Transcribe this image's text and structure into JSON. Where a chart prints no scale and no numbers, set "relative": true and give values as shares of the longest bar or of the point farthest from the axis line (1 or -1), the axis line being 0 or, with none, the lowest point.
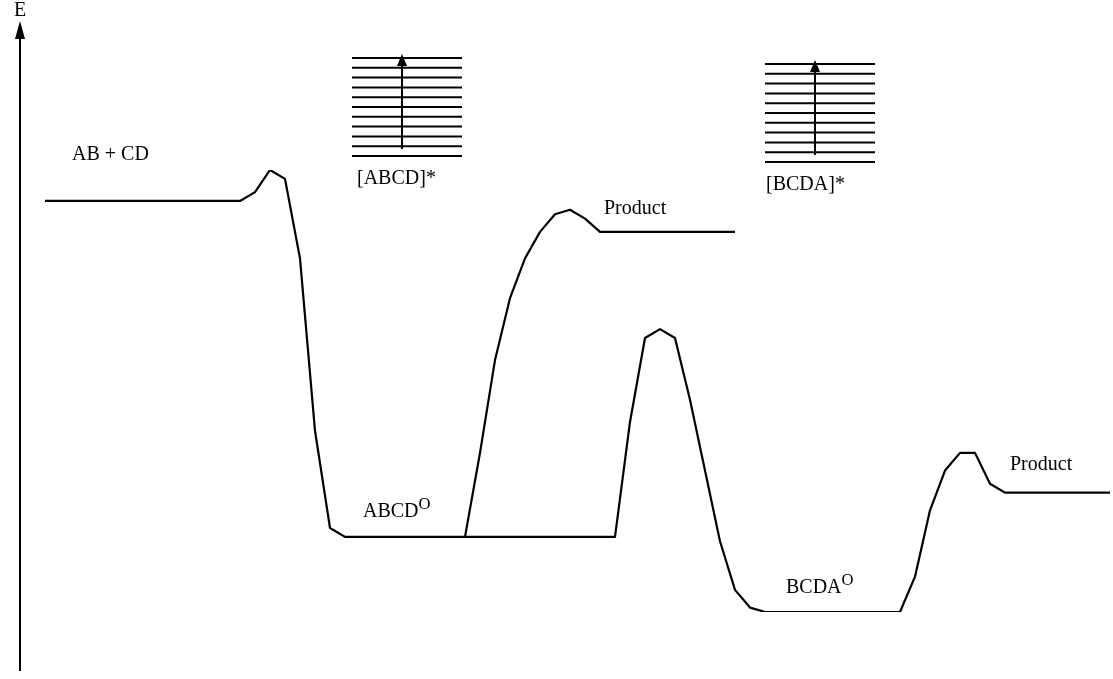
{
  "chart_data": {
    "type": "line",
    "relative": true,
    "legend": false,
    "marker": "none",
    "line_style": "solid",
    "categories": [
      null,
      null,
      null,
      null,
      null,
      null,
      null,
      null,
      null,
      null,
      null,
      null,
      null,
      null,
      null,
      null,
      null,
      null,
      null,
      null,
      null,
      null,
      null,
      null,
      null,
      null,
      null,
      null,
      null,
      null,
      null,
      null,
      null,
      null,
      null,
      null,
      null,
      null,
      null,
      null,
      null,
      null,
      null,
      null,
      null,
      null,
      null,
      null,
      null,
      null,
      null,
      null,
      null,
      null,
      null,
      null,
      null,
      null,
      null,
      null,
      null,
      null,
      null,
      null,
      null,
      null,
      null,
      null,
      null,
      null,
      null,
      null
    ],
    "series": [
      {
        "color": "#000000",
        "values": [
          0.93,
          0.93,
          0.93,
          0.93,
          0.93,
          0.93,
          0.93,
          0.93,
          0.93,
          0.93,
          0.93,
          0.93,
          0.93,
          0.93,
          0.95,
          1.0,
          0.98,
          0.8,
          0.41,
          0.19,
          0.17,
          0.17,
          0.17,
          0.17,
          0.17,
          0.17,
          0.17,
          0.17,
          0.17,
          0.36,
          0.57,
          0.71,
          0.8,
          0.86,
          0.9,
          0.91,
          0.89,
          0.86,
          0.86,
          0.86,
          0.86,
          0.86,
          0.86,
          0.86,
          0.86,
          0.86,
          0.86,
          null,
          null,
          null,
          null,
          null,
          null,
          null,
          null,
          null,
          null,
          null,
          null,
          null,
          null,
          null,
          null,
          null,
          null,
          null,
          null,
          null,
          null,
          null,
          null,
          null
        ]
      },
      {
        "color": "#000000",
        "values": [
          null,
          null,
          null,
          null,
          null,
          null,
          null,
          null,
          null,
          null,
          null,
          null,
          null,
          null,
          null,
          null,
          null,
          null,
          null,
          null,
          null,
          null,
          null,
          null,
          null,
          null,
          null,
          null,
          0.17,
          0.17,
          0.17,
          0.17,
          0.17,
          0.17,
          0.17,
          0.17,
          0.17,
          0.17,
          0.17,
          0.43,
          0.62,
          0.64,
          0.62,
          0.48,
          0.32,
          0.16,
          0.05,
          0.01,
          0,
          0,
          0,
          0,
          0,
          0,
          0,
          0,
          0,
          0,
          0.08,
          0.23,
          0.32,
          0.36,
          0.36,
          0.29,
          0.27,
          0.27,
          0.27,
          0.27,
          0.27,
          0.27,
          0.27,
          0.27
        ]
      }
    ],
    "annotations": [
      "E",
      "AB + CD",
      "[ABCD]*",
      "Product",
      "ABCD$^{O}$",
      "[BCDA]*",
      "BCDA$^{O}$",
      "Product"
    ]
  }
}
